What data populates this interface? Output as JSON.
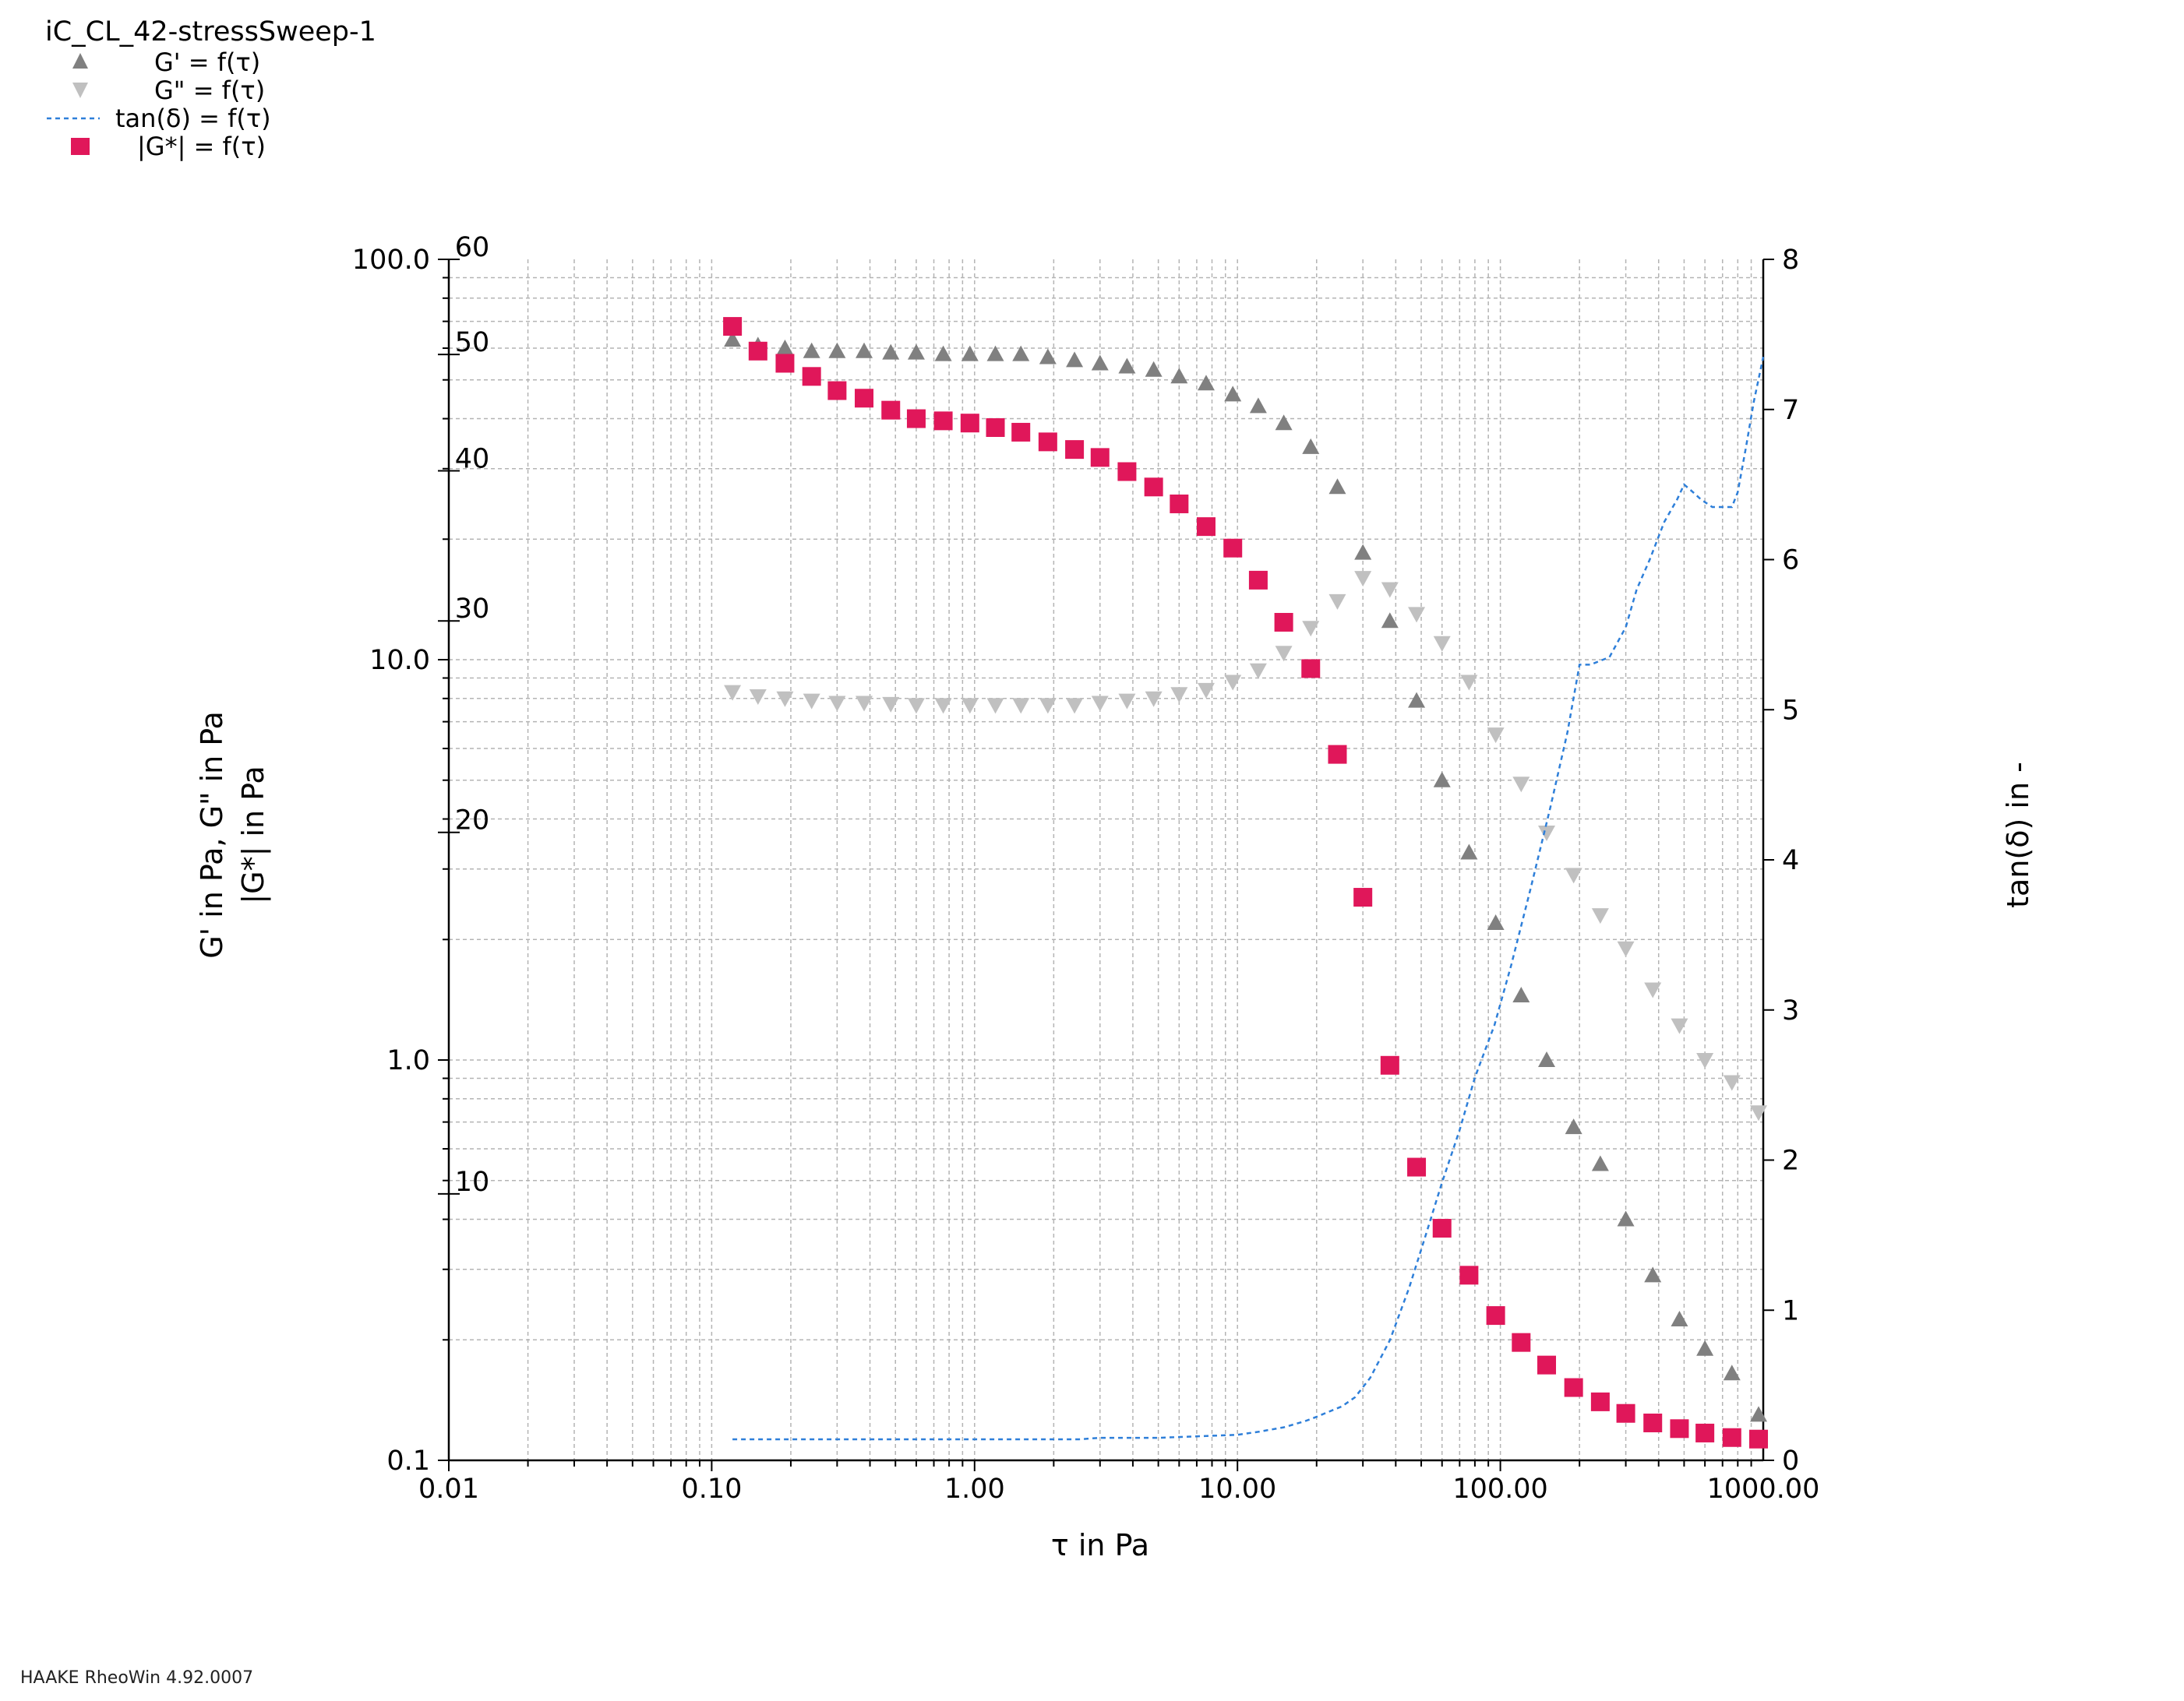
{
  "legend": {
    "title": "iC_CL_42-stressSweep-1",
    "entries": [
      {
        "label": "G' = f(τ)",
        "symbol": "triangle-up",
        "color": "#808080"
      },
      {
        "label": "G\" = f(τ)",
        "symbol": "triangle-down",
        "color": "#c0c0c0"
      },
      {
        "label": "tan(δ) = f(τ)",
        "symbol": "dashed-line",
        "color": "#2e7fd9"
      },
      {
        "label": "|G*| = f(τ)",
        "symbol": "square",
        "color": "#e0175a"
      }
    ]
  },
  "footer": "HAAKE RheoWin 4.92.0007",
  "chart_data": {
    "type": "scatter",
    "xlabel": "τ in Pa",
    "ylabel_left_line1": "G' in Pa, G\" in Pa",
    "ylabel_left_line2": "|G*| in Pa",
    "ylabel_right": "tan(δ) in -",
    "xscale": "log",
    "xlim": [
      0.01,
      1000
    ],
    "x_ticks": [
      "0.01",
      "0.10",
      "1.00",
      "10.00",
      "100.00",
      "1000.00"
    ],
    "y_left_scale": "log",
    "y_left_lim": [
      0.1,
      100
    ],
    "y_left_ticks": [
      "0.1",
      "1.0",
      "10.0",
      "100.0"
    ],
    "y_left2_scale": "log",
    "y_left2_lim": [
      6,
      60
    ],
    "y_left2_ticks": [
      "10",
      "20",
      "30",
      "40",
      "50",
      "60"
    ],
    "y_right_lim": [
      0,
      8
    ],
    "y_right_ticks": [
      "0",
      "1",
      "2",
      "3",
      "4",
      "5",
      "6",
      "7",
      "8"
    ],
    "grid": true,
    "legend_position": "top-left",
    "series": [
      {
        "name": "G' = f(τ)",
        "axis": "left",
        "marker": "triangle-up",
        "color": "#808080",
        "x": [
          0.12,
          0.15,
          0.19,
          0.24,
          0.3,
          0.38,
          0.48,
          0.6,
          0.76,
          0.96,
          1.2,
          1.5,
          1.9,
          2.4,
          3.0,
          3.8,
          4.8,
          6.0,
          7.6,
          9.6,
          12,
          15,
          19,
          24,
          30,
          38,
          48,
          60,
          76,
          96,
          120,
          150,
          190,
          240,
          300,
          380,
          480,
          600,
          760,
          960
        ],
        "y": [
          63,
          61,
          60,
          59,
          59,
          59,
          58.5,
          58.5,
          58,
          58,
          58,
          58,
          57,
          56,
          55,
          54,
          53,
          51,
          49,
          46,
          43,
          39,
          34,
          27,
          18.5,
          12.5,
          7.9,
          5.0,
          3.3,
          2.2,
          1.45,
          1.0,
          0.68,
          0.55,
          0.4,
          0.29,
          0.225,
          0.19,
          0.165,
          0.13
        ]
      },
      {
        "name": "G\" = f(τ)",
        "axis": "left",
        "marker": "triangle-down",
        "color": "#c0c0c0",
        "x": [
          0.12,
          0.15,
          0.19,
          0.24,
          0.3,
          0.38,
          0.48,
          0.6,
          0.76,
          0.96,
          1.2,
          1.5,
          1.9,
          2.4,
          3.0,
          3.8,
          4.8,
          6.0,
          7.6,
          9.6,
          12,
          15,
          19,
          24,
          30,
          38,
          48,
          60,
          76,
          96,
          120,
          150,
          190,
          240,
          300,
          380,
          480,
          600,
          760,
          960
        ],
        "y": [
          8.3,
          8.1,
          8.0,
          7.9,
          7.8,
          7.8,
          7.75,
          7.7,
          7.7,
          7.7,
          7.7,
          7.7,
          7.7,
          7.7,
          7.8,
          7.9,
          8.0,
          8.2,
          8.4,
          8.8,
          9.4,
          10.4,
          12.0,
          14.0,
          16.0,
          15.0,
          13.0,
          11.0,
          8.8,
          6.5,
          4.9,
          3.7,
          2.9,
          2.3,
          1.9,
          1.5,
          1.22,
          1.0,
          0.88,
          0.74
        ]
      },
      {
        "name": "tan(δ) = f(τ)",
        "axis": "right",
        "marker": "dashed-line",
        "color": "#2e7fd9",
        "x": [
          0.12,
          0.2,
          0.3,
          0.5,
          0.8,
          1.0,
          1.5,
          2.0,
          2.5,
          3.0,
          4.0,
          5.0,
          7.0,
          10.0,
          12.0,
          15.0,
          18.0,
          20.0,
          22.0,
          25.0,
          28.0,
          32.0,
          38.0,
          45.0,
          52.0,
          60.0,
          70.0,
          80.0,
          95.0,
          110.0,
          130.0,
          155.0,
          180.0,
          200.0,
          220.0,
          260.0,
          300.0,
          330.0,
          370.0,
          420.0,
          470.0,
          500.0,
          540.0,
          580.0,
          640.0,
          700.0,
          760.0,
          800.0,
          860.0,
          920.0,
          1000.0
        ],
        "y": [
          0.14,
          0.14,
          0.14,
          0.14,
          0.14,
          0.14,
          0.14,
          0.14,
          0.14,
          0.15,
          0.15,
          0.15,
          0.16,
          0.17,
          0.19,
          0.22,
          0.26,
          0.29,
          0.32,
          0.36,
          0.42,
          0.55,
          0.8,
          1.15,
          1.5,
          1.85,
          2.2,
          2.55,
          2.9,
          3.3,
          3.8,
          4.35,
          4.85,
          5.3,
          5.3,
          5.35,
          5.55,
          5.8,
          6.0,
          6.25,
          6.4,
          6.5,
          6.45,
          6.4,
          6.35,
          6.35,
          6.35,
          6.45,
          6.75,
          7.05,
          7.35
        ]
      },
      {
        "name": "|G*| = f(τ)",
        "axis": "left",
        "marker": "square",
        "color": "#e0175a",
        "x": [
          0.12,
          0.15,
          0.19,
          0.24,
          0.3,
          0.38,
          0.48,
          0.6,
          0.76,
          0.96,
          1.2,
          1.5,
          1.9,
          2.4,
          3.0,
          3.8,
          4.8,
          6.0,
          7.6,
          9.6,
          12,
          15,
          19,
          24,
          30,
          38,
          48,
          60,
          76,
          96,
          120,
          150,
          190,
          240,
          300,
          380,
          480,
          600,
          760,
          960
        ],
        "y": [
          68,
          59,
          55,
          51,
          47,
          45,
          42,
          40,
          39.5,
          39,
          38,
          37,
          35,
          33.5,
          32,
          29.5,
          27,
          24.5,
          21.5,
          19,
          15.8,
          12.4,
          9.5,
          5.8,
          2.55,
          0.97,
          0.54,
          0.38,
          0.29,
          0.23,
          0.197,
          0.173,
          0.152,
          0.14,
          0.131,
          0.124,
          0.12,
          0.117,
          0.114,
          0.113
        ]
      }
    ]
  }
}
